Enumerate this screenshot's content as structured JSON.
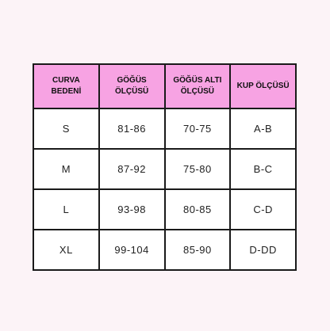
{
  "table": {
    "headers": [
      [
        "CURVA",
        "BEDENİ"
      ],
      [
        "GÖĞÜS",
        "ÖLÇÜSÜ"
      ],
      [
        "GÖĞÜS ALTI",
        "ÖLÇÜSÜ"
      ],
      [
        "KUP ÖLÇÜSÜ"
      ]
    ],
    "rows": [
      [
        "S",
        "81-86",
        "70-75",
        "A-B"
      ],
      [
        "M",
        "87-92",
        "75-80",
        "B-C"
      ],
      [
        "L",
        "93-98",
        "80-85",
        "C-D"
      ],
      [
        "XL",
        "99-104",
        "85-90",
        "D-DD"
      ]
    ]
  },
  "colors": {
    "header_bg": "#f7a3e3",
    "page_bg": "#fcf3f7",
    "border": "#1a1a1a"
  }
}
